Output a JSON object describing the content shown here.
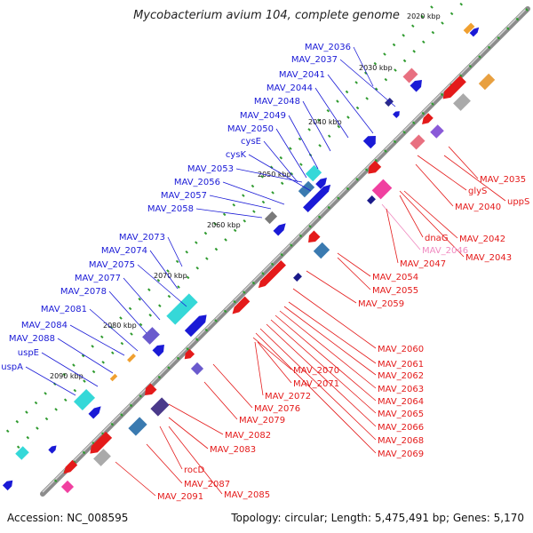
{
  "title": "Mycobacterium avium 104, complete genome",
  "footer": {
    "accession": "Accession: NC_008595",
    "topology": "Topology: circular; Length: 5,475,491 bp; Genes: 5,170"
  },
  "kbp_labels": [
    "2020 kbp",
    "2030 kbp",
    "2040 kbp",
    "2050 kbp",
    "2060 kbp",
    "2070 kbp",
    "2080 kbp",
    "2090 kbp"
  ],
  "plus_genes": [
    "MAV_2036",
    "MAV_2037",
    "MAV_2041",
    "MAV_2044",
    "MAV_2048",
    "MAV_2049",
    "MAV_2050",
    "cysE",
    "cysK",
    "MAV_2053",
    "MAV_2056",
    "MAV_2057",
    "MAV_2058",
    "MAV_2073",
    "MAV_2074",
    "MAV_2075",
    "MAV_2077",
    "MAV_2078",
    "MAV_2081",
    "MAV_2084",
    "MAV_2088",
    "uspE",
    "uspA"
  ],
  "minus_genes_right": [
    "MAV_2035",
    "uppS",
    "glyS",
    "MAV_2040",
    "dnaG",
    "MAV_2042",
    "MAV_2043",
    "MAV_2046",
    "MAV_2047",
    "MAV_2054",
    "MAV_2055",
    "MAV_2059",
    "MAV_2060",
    "MAV_2061",
    "MAV_2062",
    "MAV_2063",
    "MAV_2064",
    "MAV_2065",
    "MAV_2066",
    "MAV_2068",
    "MAV_2069"
  ],
  "minus_genes_inner": [
    "MAV_2070",
    "MAV_2071",
    "MAV_2072",
    "MAV_2076",
    "MAV_2079",
    "MAV_2082",
    "MAV_2083",
    "rocD",
    "MAV_2087",
    "MAV_2085",
    "MAV_2091"
  ],
  "colors": {
    "plus_label": "#1a1ad6",
    "minus_label": "#e41a1a",
    "pseudo_label": "#f08ac0",
    "backbone": "#8c8c8c",
    "tick": "#2e9a2e"
  }
}
